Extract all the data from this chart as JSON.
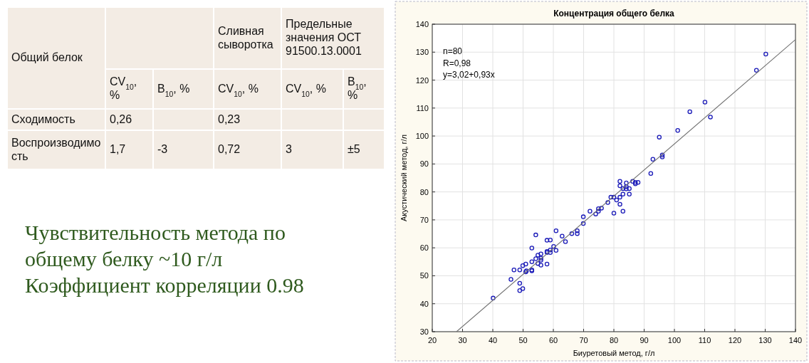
{
  "chart_data": [
    {
      "type": "other",
      "annotations": [
        "Общий белок",
        "Сливная сыворотка",
        "Предельные значения ОСТ 91500.13.0001",
        "CV$_{10}$, %",
        "B$_{10}$, %",
        "CV$_{10}$, %",
        "CV$_{10}$, %",
        "B$_{10}$, %",
        "Сходимость",
        "0,26",
        "0,23",
        "Воспроизводимость",
        "1,7",
        "-3",
        "0,72",
        "3",
        "±5",
        "Чувствительность метода по общему белку ~10 г/л",
        "Коэффициент корреляции 0.98"
      ]
    },
    {
      "type": "scatter",
      "title": "Концентрация общего белка",
      "xlabel": "Биуретовый метод, г/л",
      "ylabel": "Акустический метод, г/л",
      "xlim": [
        20,
        140
      ],
      "ylim": [
        30,
        140
      ],
      "xticks": [
        20,
        30,
        40,
        50,
        60,
        70,
        80,
        90,
        100,
        110,
        120,
        130,
        140
      ],
      "yticks": [
        30,
        40,
        50,
        60,
        70,
        80,
        90,
        100,
        110,
        120,
        130,
        140
      ],
      "grid": true,
      "annotations": [
        "n=80",
        "R=0,98",
        "y=3,02+0,93x"
      ],
      "series": [
        {
          "type": "scatter",
          "marker": "circle",
          "color": "#1a1ab8",
          "x": [
            40.1,
            46,
            47,
            48.9,
            48.9,
            48.9,
            49.9,
            49.9,
            50.9,
            50.9,
            51.1,
            52.9,
            52.9,
            52.9,
            52.9,
            54.2,
            54.2,
            54.9,
            54.9,
            55.9,
            55.9,
            55.9,
            55.9,
            57.9,
            57.9,
            57.9,
            57.9,
            59,
            59,
            59,
            60.1,
            60.9,
            60.9,
            62.9,
            64,
            66.1,
            67.9,
            67.9,
            69.9,
            69.9,
            72.1,
            74,
            74.9,
            74.9,
            75.9,
            78,
            79,
            80,
            80,
            80.9,
            82,
            82,
            82,
            82,
            83,
            83,
            83,
            84.1,
            84.1,
            84.1,
            85.1,
            85.1,
            86.2,
            87.1,
            87.1,
            88,
            92.2,
            92.9,
            95,
            96,
            96,
            101.1,
            105.1,
            110.1,
            111.9,
            127.1,
            130.2
          ],
          "values": [
            42,
            48.7,
            52.1,
            52.1,
            47.3,
            44.7,
            45.4,
            53.6,
            54.2,
            51.4,
            51.8,
            51.8,
            52.1,
            55,
            59.9,
            64.6,
            56.1,
            57.4,
            54.4,
            57.8,
            55.6,
            56.3,
            53.8,
            62.7,
            58.3,
            58.7,
            54.2,
            62.8,
            59.2,
            58.3,
            60.5,
            66.1,
            59.1,
            64.2,
            62.2,
            65.1,
            65.1,
            66.1,
            71.1,
            68.7,
            73.1,
            72.1,
            73.1,
            74,
            74.2,
            76.2,
            78.1,
            78.1,
            72.4,
            77.1,
            78.1,
            75.6,
            83.8,
            82.2,
            81.2,
            79.2,
            73.1,
            83.2,
            81.1,
            81.9,
            81.2,
            79.2,
            83.8,
            83.4,
            82.9,
            83.4,
            86.6,
            91.7,
            99.6,
            93.2,
            92.5,
            102,
            108.7,
            112.1,
            106.8,
            123.5,
            129.3
          ]
        },
        {
          "type": "line",
          "color": "#707070",
          "x": [
            28,
            140
          ],
          "values": [
            30,
            134.5
          ]
        }
      ]
    }
  ]
}
